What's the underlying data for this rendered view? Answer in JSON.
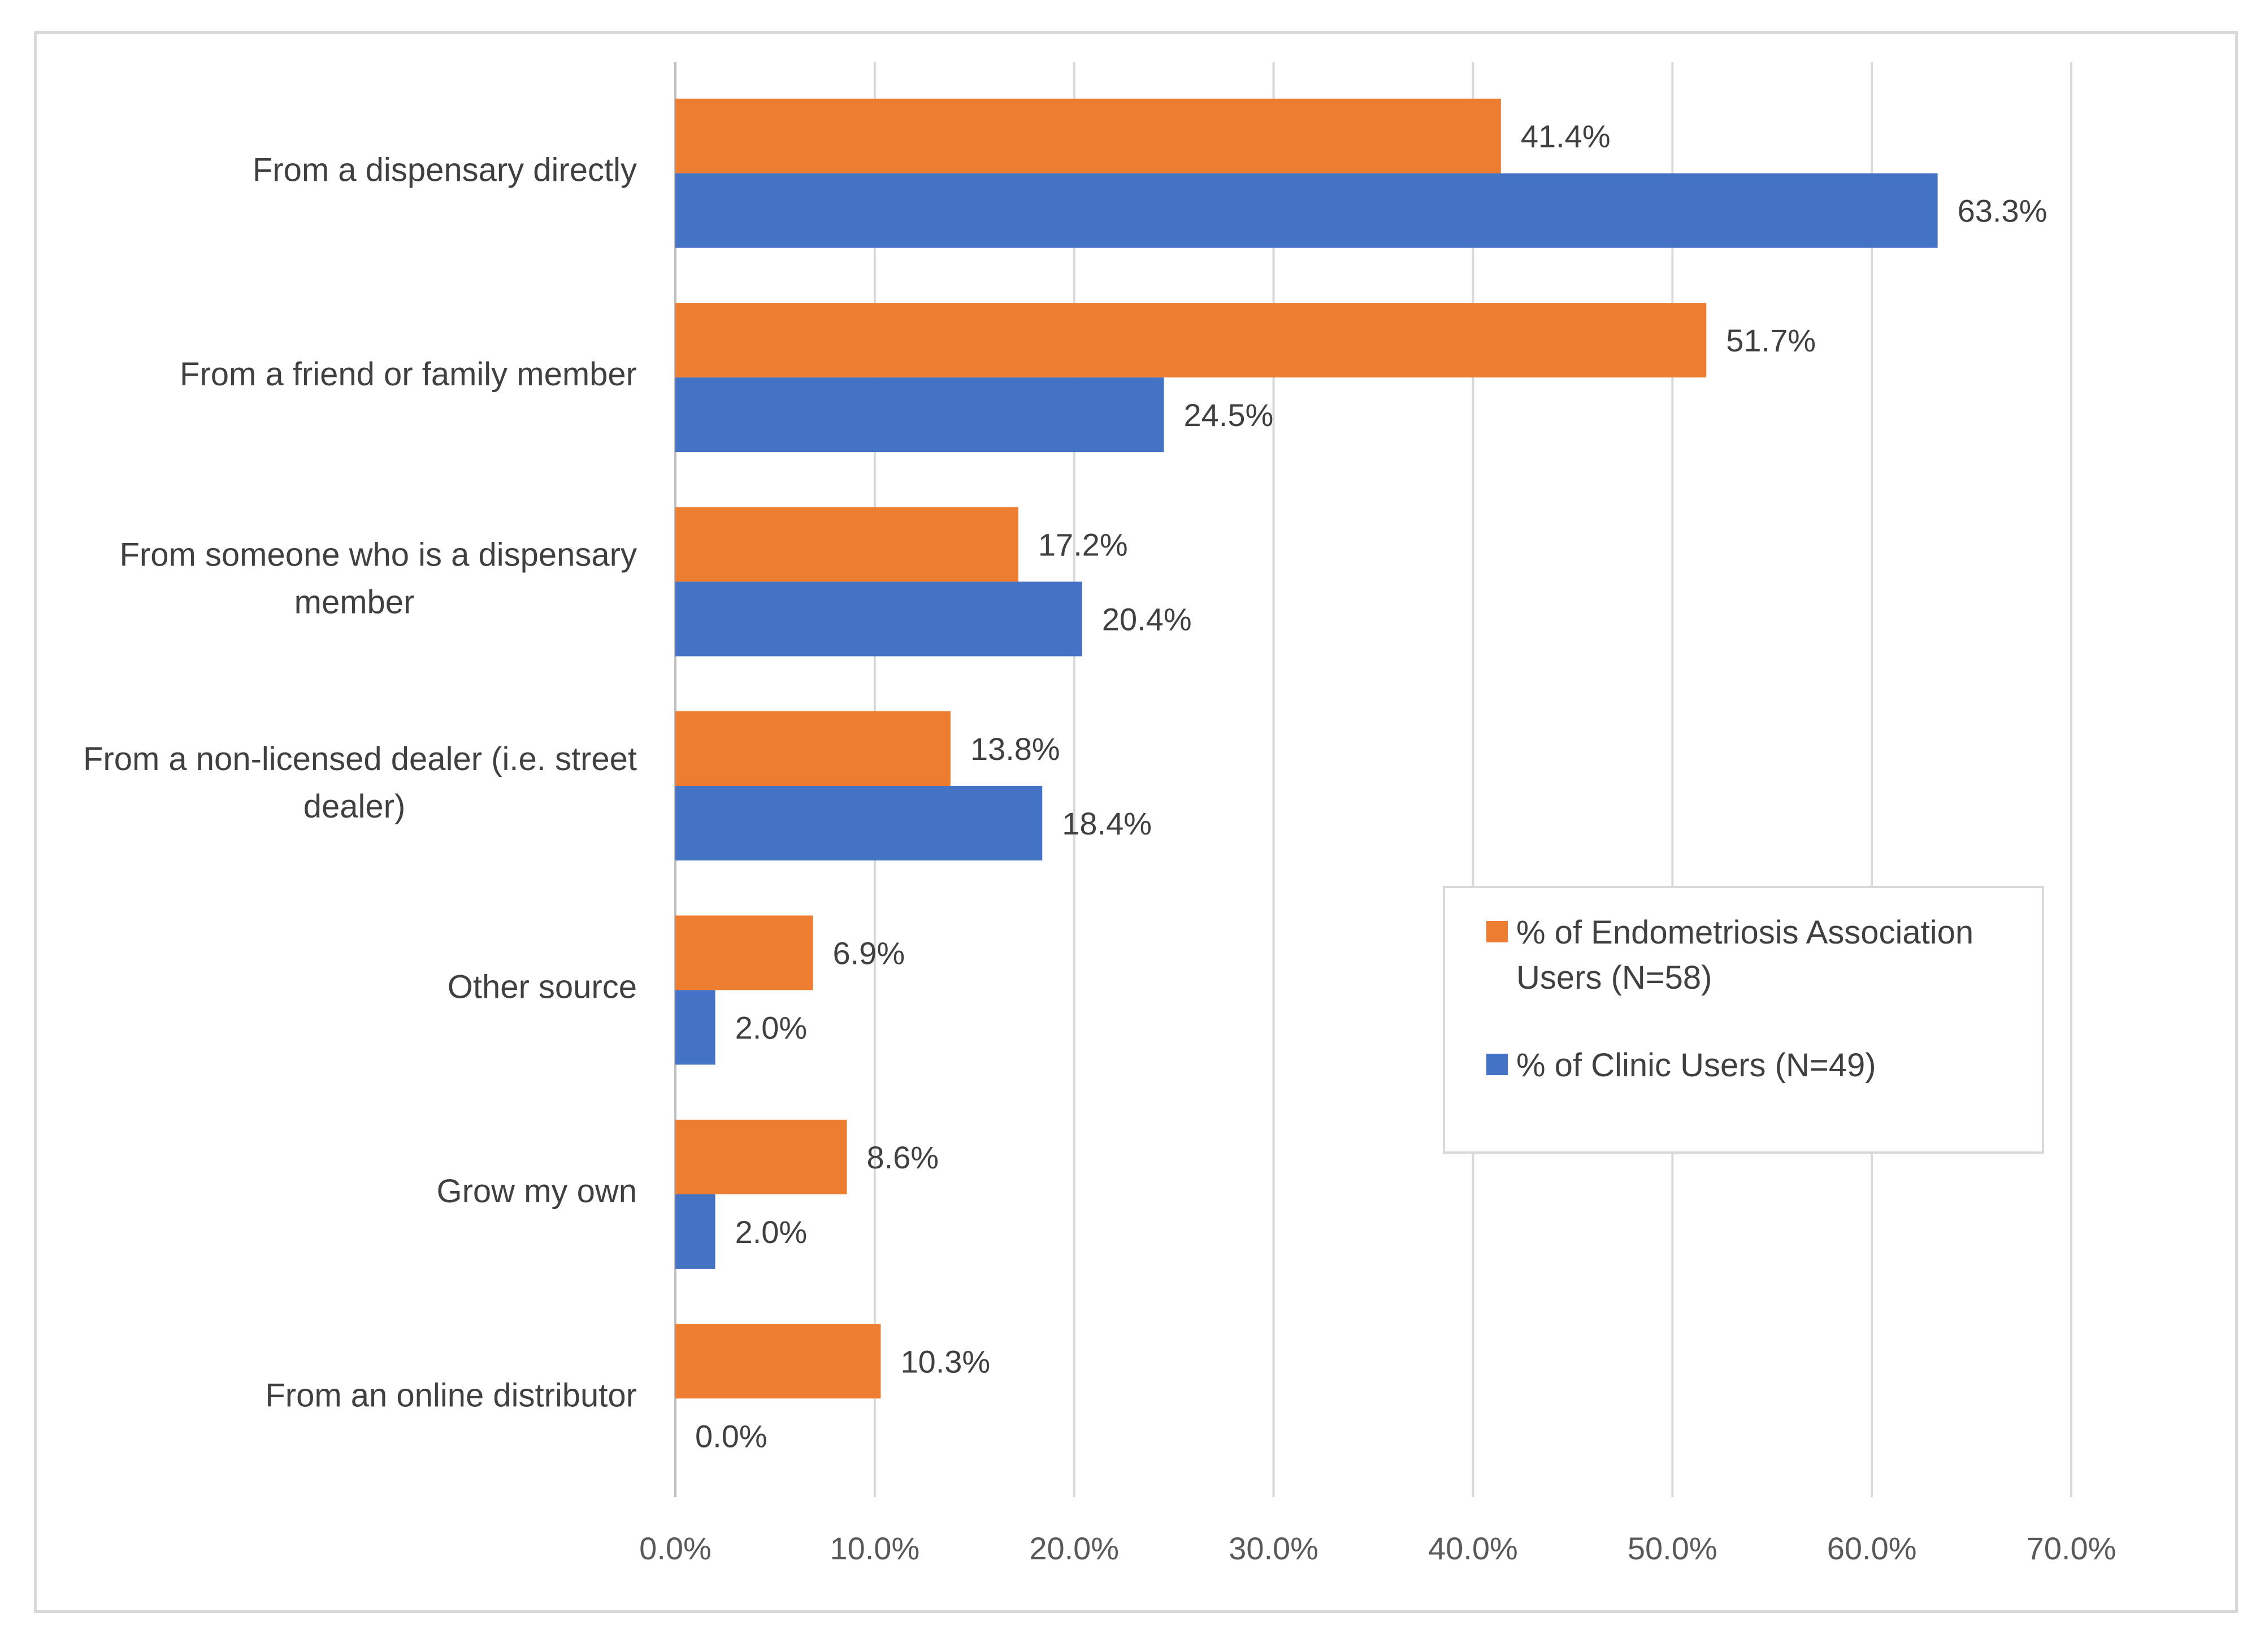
{
  "chart_data": {
    "type": "bar",
    "orientation": "horizontal",
    "title": "",
    "xlabel": "",
    "ylabel": "",
    "categories": [
      [
        "From a dispensary directly"
      ],
      [
        "From a friend or family member"
      ],
      [
        "From someone who is a dispensary",
        "member"
      ],
      [
        "From a non-licensed dealer (i.e. street",
        "dealer)"
      ],
      [
        "Other source"
      ],
      [
        "Grow my own"
      ],
      [
        "From an online distributor"
      ]
    ],
    "series": [
      {
        "name": "% of Endometriosis Association Users (N=58)",
        "legend_lines": [
          "% of Endometriosis Association",
          "Users (N=58)"
        ],
        "color": "#ed7d31",
        "values": [
          41.4,
          51.7,
          17.2,
          13.8,
          6.9,
          8.6,
          10.3
        ],
        "labels": [
          "41.4%",
          "51.7%",
          "17.2%",
          "13.8%",
          "6.9%",
          "8.6%",
          "10.3%"
        ]
      },
      {
        "name": "% of Clinic Users (N=49)",
        "legend_lines": [
          "% of Clinic Users (N=49)"
        ],
        "color": "#4472c4",
        "values": [
          63.3,
          24.5,
          20.4,
          18.4,
          2.0,
          2.0,
          0.0
        ],
        "labels": [
          "63.3%",
          "24.5%",
          "20.4%",
          "18.4%",
          "2.0%",
          "2.0%",
          "0.0%"
        ]
      }
    ],
    "xlim": [
      0,
      70
    ],
    "xticks": [
      "0.0%",
      "10.0%",
      "20.0%",
      "30.0%",
      "40.0%",
      "50.0%",
      "60.0%",
      "70.0%"
    ],
    "grid": true,
    "legend_position": "center-right"
  },
  "colors": {
    "gridline": "#d9d9d9",
    "axis": "#bfbfbf",
    "frame": "#d9d9d9"
  }
}
